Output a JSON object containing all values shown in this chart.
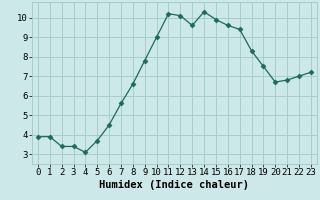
{
  "x": [
    0,
    1,
    2,
    3,
    4,
    5,
    6,
    7,
    8,
    9,
    10,
    11,
    12,
    13,
    14,
    15,
    16,
    17,
    18,
    19,
    20,
    21,
    22,
    23
  ],
  "y": [
    3.9,
    3.9,
    3.4,
    3.4,
    3.1,
    3.7,
    4.5,
    5.6,
    6.6,
    7.8,
    9.0,
    10.2,
    10.1,
    9.6,
    10.3,
    9.9,
    9.6,
    9.4,
    8.3,
    7.5,
    6.7,
    6.8,
    7.0,
    7.2
  ],
  "xlabel": "Humidex (Indice chaleur)",
  "ylim": [
    2.5,
    10.8
  ],
  "xlim": [
    -0.5,
    23.5
  ],
  "yticks": [
    3,
    4,
    5,
    6,
    7,
    8,
    9,
    10
  ],
  "xticks": [
    0,
    1,
    2,
    3,
    4,
    5,
    6,
    7,
    8,
    9,
    10,
    11,
    12,
    13,
    14,
    15,
    16,
    17,
    18,
    19,
    20,
    21,
    22,
    23
  ],
  "line_color": "#1a6b5a",
  "marker_color": "#1a6b5a",
  "bg_color": "#cde8e8",
  "grid_color": "#a0c8c8",
  "axes_bg": "#cde8e8",
  "xlabel_fontsize": 7.5,
  "tick_fontsize": 6.5
}
